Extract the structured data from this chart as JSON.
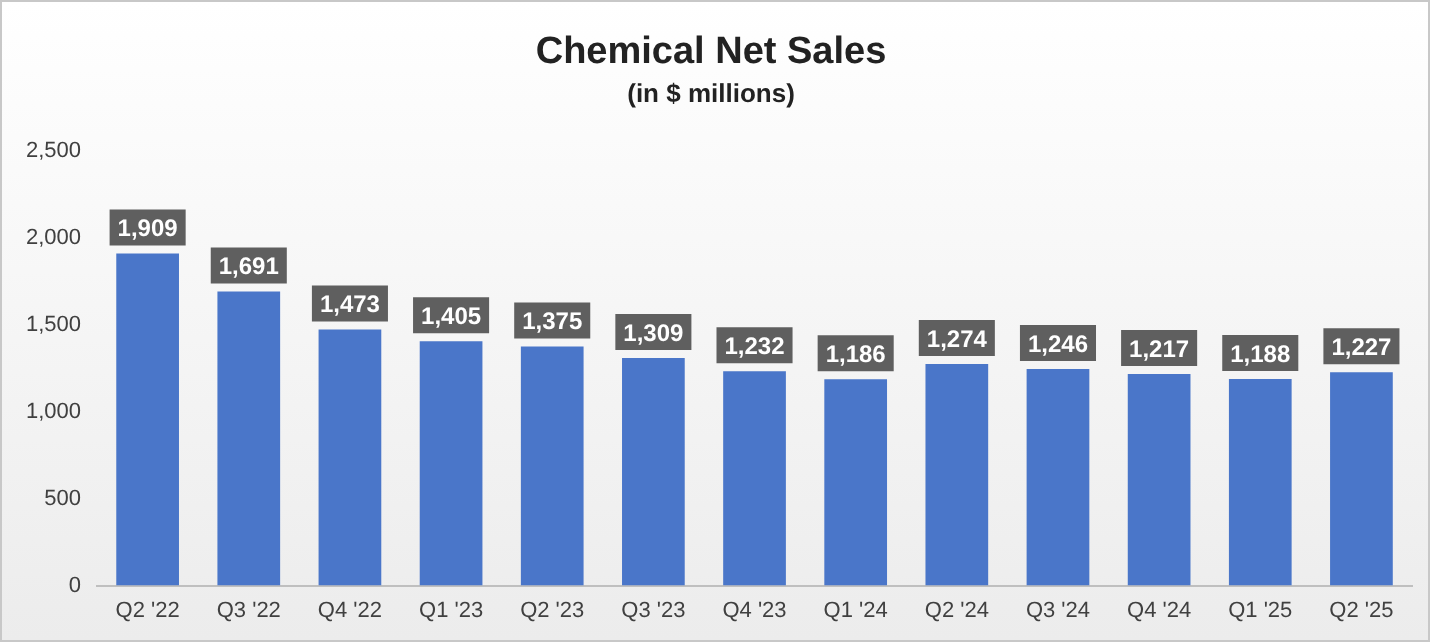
{
  "chart_data": {
    "type": "bar",
    "title": "Chemical Net Sales",
    "subtitle": "(in $ millions)",
    "categories": [
      "Q2 '22",
      "Q3 '22",
      "Q4 '22",
      "Q1 '23",
      "Q2 '23",
      "Q3 '23",
      "Q4 '23",
      "Q1 '24",
      "Q2 '24",
      "Q3 '24",
      "Q4 '24",
      "Q1 '25",
      "Q2 '25"
    ],
    "values": [
      1909,
      1691,
      1473,
      1405,
      1375,
      1309,
      1232,
      1186,
      1274,
      1246,
      1217,
      1188,
      1227
    ],
    "color": "#4a76c9",
    "value_labels": [
      "1,909",
      "1,691",
      "1,473",
      "1,405",
      "1,375",
      "1,309",
      "1,232",
      "1,186",
      "1,274",
      "1,246",
      "1,217",
      "1,188",
      "1,227"
    ],
    "ylim": [
      0,
      2500
    ],
    "yticks": [
      0,
      500,
      {
        "value": 1000,
        "label": "1,000"
      },
      {
        "value": 1500,
        "label": "1,500"
      },
      {
        "value": 2000,
        "label": "2,000"
      },
      {
        "value": 2500,
        "label": "2,500"
      }
    ],
    "grid": false,
    "legend": false
  }
}
